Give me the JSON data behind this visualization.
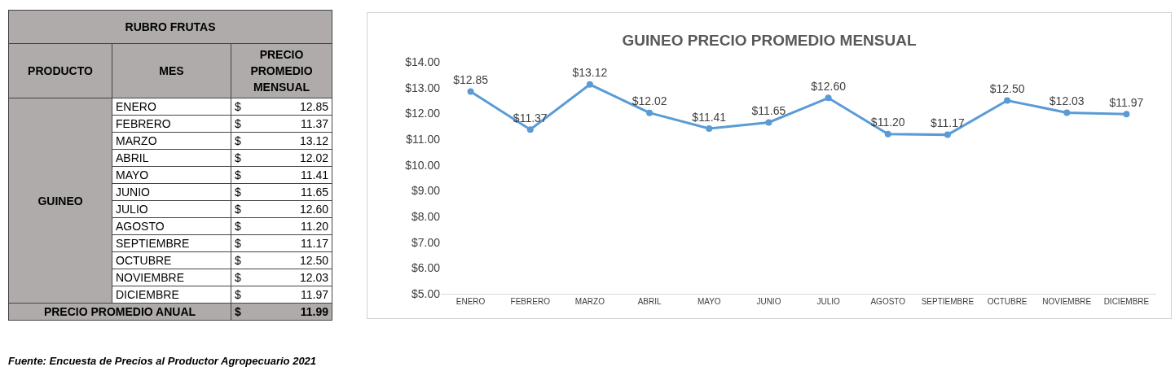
{
  "chart_data": [
    {
      "type": "other",
      "title": "RUBRO FRUTAS",
      "categories": [
        "ENERO",
        "FEBRERO",
        "MARZO",
        "ABRIL",
        "MAYO",
        "JUNIO",
        "JULIO",
        "AGOSTO",
        "SEPTIEMBRE",
        "OCTUBRE",
        "NOVIEMBRE",
        "DICIEMBRE"
      ],
      "value_labels": [
        "$ 12.85",
        "$ 11.37",
        "$ 13.12",
        "$ 12.02",
        "$ 11.41",
        "$ 11.65",
        "$ 12.60",
        "$ 11.20",
        "$ 11.17",
        "$ 12.50",
        "$ 12.03",
        "$ 11.97"
      ],
      "annotations": [
        "PRODUCTO",
        "MES",
        "PRECIO PROMEDIO MENSUAL",
        "GUINEO",
        "PRECIO PROMEDIO ANUAL",
        "$ 11.99",
        "Fuente: Encuesta de Precios al Productor Agropecuario 2021"
      ]
    },
    {
      "type": "line",
      "title": "GUINEO PRECIO PROMEDIO MENSUAL",
      "categories": [
        "ENERO",
        "FEBRERO",
        "MARZO",
        "ABRIL",
        "MAYO",
        "JUNIO",
        "JULIO",
        "AGOSTO",
        "SEPTIEMBRE",
        "OCTUBRE",
        "NOVIEMBRE",
        "DICIEMBRE"
      ],
      "values": [
        12.85,
        11.37,
        13.12,
        12.02,
        11.41,
        11.65,
        12.6,
        11.2,
        11.17,
        12.5,
        12.03,
        11.97
      ],
      "value_labels": [
        "$12.85",
        "$11.37",
        "$13.12",
        "$12.02",
        "$11.41",
        "$11.65",
        "$12.60",
        "$11.20",
        "$11.17",
        "$12.50",
        "$12.03",
        "$11.97"
      ],
      "color": "#5b9bd5",
      "marker": "circle",
      "ylim": [
        5,
        14
      ],
      "yticks": [
        {
          "value": 5,
          "label": "$5.00"
        },
        {
          "value": 6,
          "label": "$6.00"
        },
        {
          "value": 7,
          "label": "$7.00"
        },
        {
          "value": 8,
          "label": "$8.00"
        },
        {
          "value": 9,
          "label": "$9.00"
        },
        {
          "value": 10,
          "label": "$10.00"
        },
        {
          "value": 11,
          "label": "$11.00"
        },
        {
          "value": 12,
          "label": "$12.00"
        },
        {
          "value": 13,
          "label": "$13.00"
        },
        {
          "value": 14,
          "label": "$14.00"
        }
      ]
    }
  ]
}
